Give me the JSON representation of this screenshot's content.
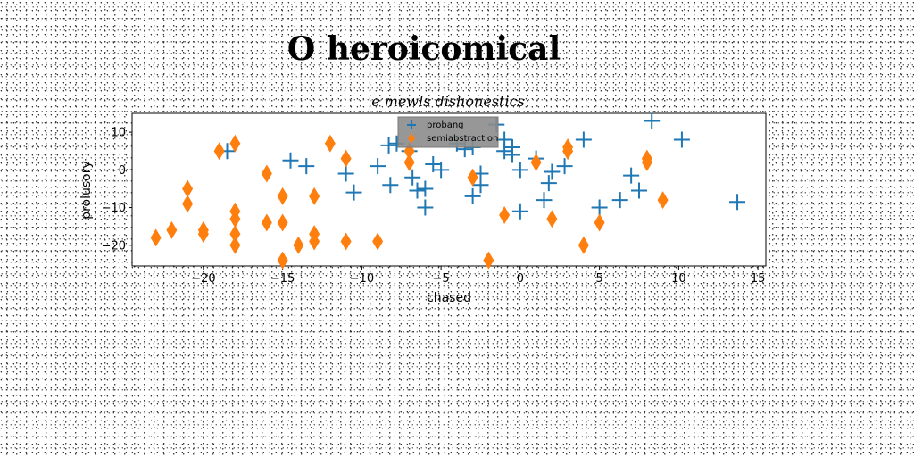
{
  "title": "O heroicomical",
  "chart_data": {
    "type": "scatter",
    "subtitle": "e mewls dishonestics",
    "xlabel": "chased",
    "ylabel": "prolusory",
    "xlim": [
      -24.5,
      15.5
    ],
    "ylim": [
      -25.5,
      15
    ],
    "xticks": [
      -20,
      -15,
      -10,
      -5,
      0,
      5,
      10,
      15
    ],
    "yticks": [
      -20,
      -10,
      0,
      10
    ],
    "xtick_labels": [
      "−20",
      "−15",
      "−10",
      "−5",
      "0",
      "5",
      "10",
      "15"
    ],
    "ytick_labels": [
      "−20",
      "−10",
      "0",
      "10"
    ],
    "legend_position": "top-center",
    "grid": false,
    "series": [
      {
        "name": "probang",
        "marker": "plus",
        "color": "#1f77b4",
        "points": [
          [
            -18.5,
            5
          ],
          [
            -14.5,
            2.5
          ],
          [
            -13.5,
            1
          ],
          [
            -11,
            -1
          ],
          [
            -10.5,
            -6
          ],
          [
            -9,
            1
          ],
          [
            -8.3,
            6.5
          ],
          [
            -8.2,
            -4
          ],
          [
            -7.8,
            7
          ],
          [
            -7,
            5
          ],
          [
            -6.8,
            -2
          ],
          [
            -6.5,
            -5.5
          ],
          [
            -6,
            -10
          ],
          [
            -6,
            -5
          ],
          [
            -5.5,
            1.5
          ],
          [
            -5,
            0
          ],
          [
            -4,
            7
          ],
          [
            -3.5,
            5.5
          ],
          [
            -3,
            6
          ],
          [
            -3,
            -7
          ],
          [
            -2.5,
            -1
          ],
          [
            -2.5,
            -4
          ],
          [
            -1.5,
            12
          ],
          [
            -1,
            5
          ],
          [
            -1,
            8
          ],
          [
            -0.5,
            6
          ],
          [
            -0.5,
            4
          ],
          [
            0,
            -11
          ],
          [
            0,
            0
          ],
          [
            1,
            3
          ],
          [
            1.5,
            -8
          ],
          [
            1.8,
            -3.5
          ],
          [
            2,
            -0.5
          ],
          [
            2.8,
            1
          ],
          [
            4,
            8
          ],
          [
            5,
            -10
          ],
          [
            6.3,
            -8
          ],
          [
            7,
            -1.5
          ],
          [
            7.5,
            -5.5
          ],
          [
            8.3,
            13
          ],
          [
            10.2,
            8
          ],
          [
            13.7,
            -8.5
          ]
        ]
      },
      {
        "name": "semiabstraction",
        "marker": "thin_diamond",
        "color": "#ff7f0e",
        "points": [
          [
            -23,
            -18
          ],
          [
            -22,
            -16
          ],
          [
            -21,
            -5
          ],
          [
            -21,
            -9
          ],
          [
            -20,
            -16
          ],
          [
            -20,
            -17
          ],
          [
            -19,
            5
          ],
          [
            -18,
            7
          ],
          [
            -18,
            -11
          ],
          [
            -18,
            -13
          ],
          [
            -18,
            -17
          ],
          [
            -18,
            -20
          ],
          [
            -16,
            -1
          ],
          [
            -16,
            -14
          ],
          [
            -15,
            -7
          ],
          [
            -15,
            -14
          ],
          [
            -15,
            -24
          ],
          [
            -14,
            -20
          ],
          [
            -13,
            -7
          ],
          [
            -13,
            -17
          ],
          [
            -13,
            -19
          ],
          [
            -12,
            7
          ],
          [
            -11,
            3
          ],
          [
            -11,
            -19
          ],
          [
            -9,
            -19
          ],
          [
            -7,
            5
          ],
          [
            -7,
            2
          ],
          [
            -3,
            -2
          ],
          [
            -2,
            -24
          ],
          [
            -1,
            -12
          ],
          [
            1,
            2
          ],
          [
            2,
            -13
          ],
          [
            3,
            6
          ],
          [
            3,
            5
          ],
          [
            4,
            -20
          ],
          [
            5,
            -14
          ],
          [
            8,
            3
          ],
          [
            8,
            2
          ],
          [
            9,
            -8
          ]
        ]
      }
    ]
  }
}
